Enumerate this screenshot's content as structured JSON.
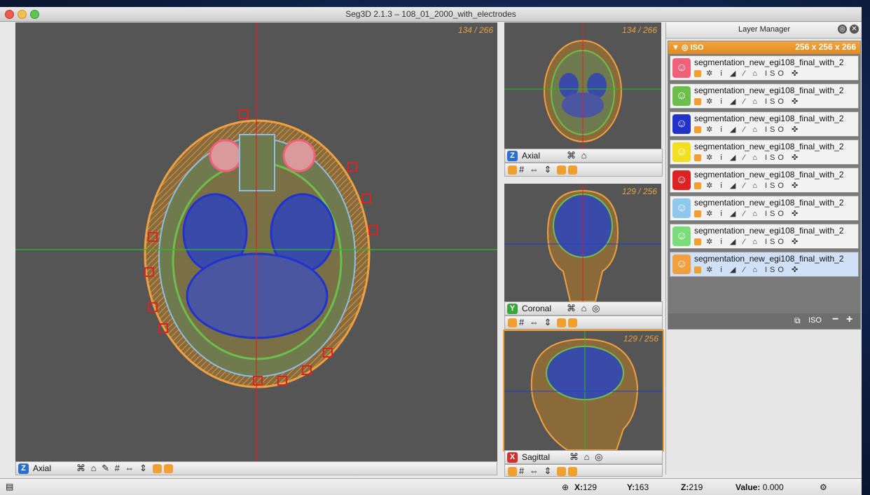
{
  "window": {
    "title": "Seg3D  2.1.3 – 108_01_2000_with_electrodes"
  },
  "viewers": {
    "main": {
      "name": "Axial",
      "badge": "Z",
      "slice": "134 / 266",
      "tools": "⌘ ⌂  ✎ # ⇔ ⇕"
    },
    "axial": {
      "name": "Axial",
      "badge": "Z",
      "slice": "134 / 266",
      "tools1": "⌘ ⌂",
      "tools2": "# ⇔ ⇕"
    },
    "coronal": {
      "name": "Coronal",
      "badge": "Y",
      "slice": "129 / 256",
      "tools1": "⌘ ⌂ ◎",
      "tools2": "# ⇔ ⇕"
    },
    "sagittal": {
      "name": "Sagittal",
      "badge": "X",
      "slice": "129 / 256",
      "tools1": "⌘ ⌂ ◎",
      "tools2": "# ⇔ ⇕"
    }
  },
  "layer_manager": {
    "title": "Layer Manager",
    "group": {
      "label": "ISO",
      "dims": "256 x 256 x 266"
    },
    "layers": [
      {
        "name": "segmentation_new_egi108_final_with_2",
        "color": "#f06078"
      },
      {
        "name": "segmentation_new_egi108_final_with_2",
        "color": "#6cbf4c"
      },
      {
        "name": "segmentation_new_egi108_final_with_2",
        "color": "#2233cc"
      },
      {
        "name": "segmentation_new_egi108_final_with_2",
        "color": "#f2e020"
      },
      {
        "name": "segmentation_new_egi108_final_with_2",
        "color": "#dd2222"
      },
      {
        "name": "segmentation_new_egi108_final_with_2",
        "color": "#8ec8ec"
      },
      {
        "name": "segmentation_new_egi108_final_with_2",
        "color": "#7adc7a"
      },
      {
        "name": "segmentation_new_egi108_final_with_2",
        "color": "#f0a040"
      }
    ],
    "layer_icons": "✲ i ◢ ⁄ ⌂ ISO ✜",
    "footer_iso": "ISO"
  },
  "status": {
    "x_label": "X:",
    "x": "129",
    "y_label": "Y:",
    "y": "163",
    "z_label": "Z:",
    "z": "219",
    "value_label": "Value:",
    "value": "0.000"
  },
  "colors": {
    "accent": "#f0a030",
    "viewer_bg": "#555555",
    "crosshair_red": "#e02020",
    "crosshair_green": "#20c020",
    "crosshair_blue": "#2040e0"
  }
}
